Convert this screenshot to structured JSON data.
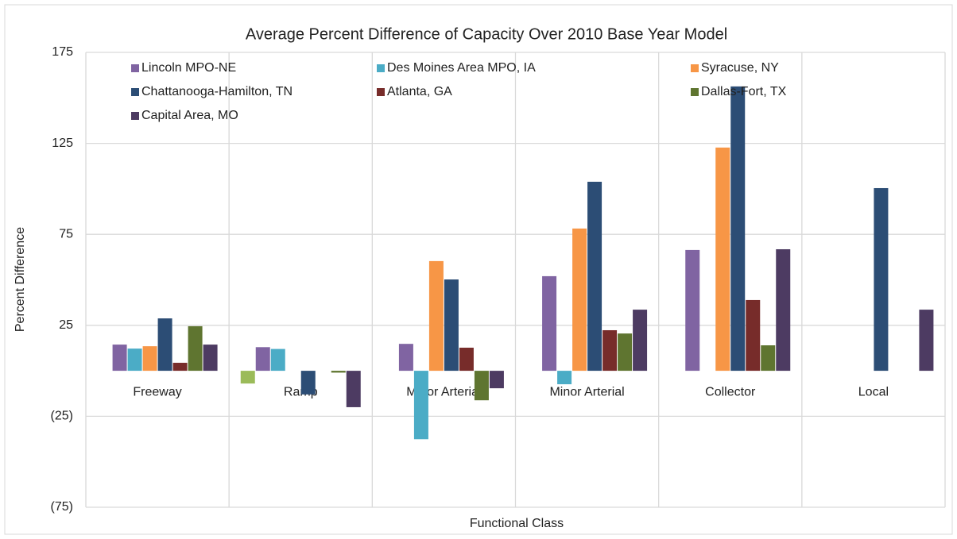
{
  "chart_data": {
    "type": "bar",
    "title": "Average Percent Difference of Capacity Over 2010 Base Year Model",
    "xlabel": "Functional Class",
    "ylabel": "Percent Difference",
    "categories": [
      "Freeway",
      "Ramp",
      "Major Arterial",
      "Minor Arterial",
      "Collector",
      "Local"
    ],
    "series": [
      {
        "color": "#9bbb59",
        "values": [
          null,
          -7,
          null,
          null,
          null,
          null
        ]
      },
      {
        "name": "Lincoln MPO-NE",
        "color": "#8064a2",
        "values": [
          14.4,
          13,
          14.8,
          52,
          66.4,
          null
        ]
      },
      {
        "name": "Des Moines Area MPO, IA",
        "color": "#4bacc6",
        "values": [
          12.2,
          12,
          -37.6,
          -7.4,
          null,
          null
        ]
      },
      {
        "name": "Syracuse, NY",
        "color": "#f79646",
        "values": [
          13.5,
          null,
          60.3,
          78.2,
          122.7,
          null
        ]
      },
      {
        "name": "Chattanooga-Hamilton, TN",
        "color": "#2c4d75",
        "values": [
          28.8,
          -13,
          50.2,
          103.9,
          156.3,
          100.4
        ]
      },
      {
        "name": "Atlanta, GA",
        "color": "#772c2a",
        "values": [
          4.4,
          null,
          12.7,
          22.3,
          38.9,
          null
        ]
      },
      {
        "name": "Dallas-Fort, TX",
        "color": "#5f7530",
        "values": [
          24.5,
          -1,
          -16.2,
          20.5,
          14,
          null
        ]
      },
      {
        "name": "Capital Area, MO",
        "color": "#4d3b62",
        "values": [
          14.4,
          -20,
          -9.6,
          33.6,
          66.8,
          33.6
        ]
      }
    ],
    "ylim": [
      -75,
      175
    ],
    "yticks": [
      175,
      125,
      75,
      25,
      {
        "value": -25,
        "label": "(25)"
      },
      {
        "value": -75,
        "label": "(75)"
      }
    ],
    "grid": true,
    "legend": "top"
  }
}
